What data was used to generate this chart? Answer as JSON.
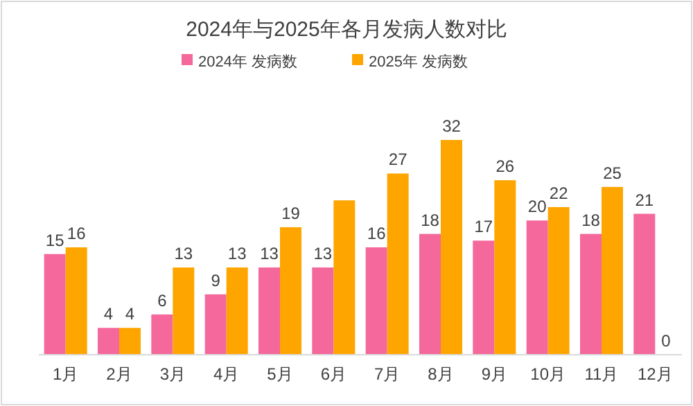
{
  "chart_data": {
    "type": "bar",
    "title": "2024年与2025年各月发病人数对比",
    "legend": "top",
    "categories": [
      "1月",
      "2月",
      "3月",
      "4月",
      "5月",
      "6月",
      "7月",
      "8月",
      "9月",
      "10月",
      "11月",
      "12月"
    ],
    "series": [
      {
        "name": "2024年 发病数",
        "color": "#f4689b",
        "values": [
          15,
          4,
          6,
          9,
          13,
          13,
          16,
          18,
          17,
          20,
          18,
          21
        ],
        "value_labels": [
          "15",
          "4",
          "6",
          "9",
          "13",
          "13",
          "16",
          "18",
          "17",
          "20",
          "18",
          "21"
        ]
      },
      {
        "name": "2025年 发病数",
        "color": "#ffa500",
        "values": [
          16,
          4,
          13,
          13,
          19,
          23,
          27,
          32,
          26,
          22,
          25,
          0
        ],
        "value_labels": [
          "16",
          "4",
          "13",
          "13",
          "19",
          null,
          "27",
          "32",
          "26",
          "22",
          "25",
          "0"
        ]
      }
    ]
  }
}
